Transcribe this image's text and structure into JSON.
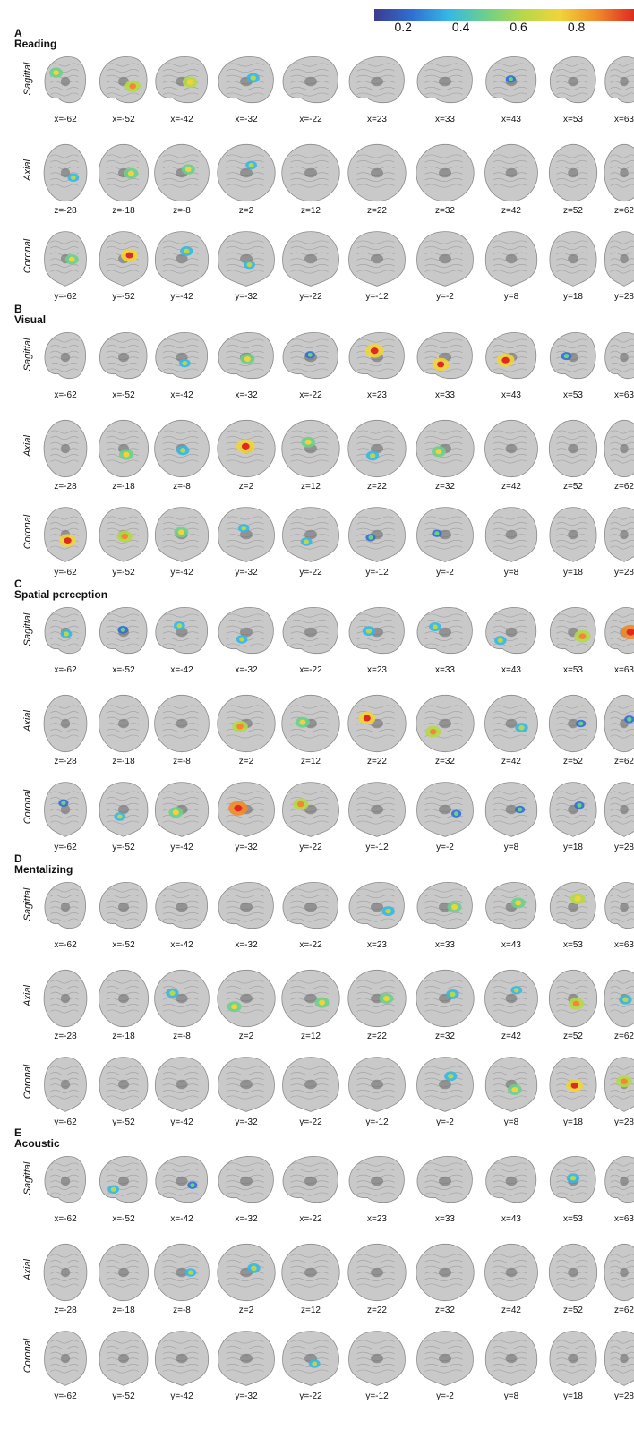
{
  "colorbar": {
    "ticks": [
      "0.2",
      "0.4",
      "0.6",
      "0.8"
    ],
    "tick_values": [
      0.2,
      0.4,
      0.6,
      0.8
    ],
    "range": [
      0.1,
      1.0
    ],
    "colors": [
      "#3b3b8f",
      "#2f6fd1",
      "#35b7e6",
      "#6cd08b",
      "#b6d84a",
      "#f1d43a",
      "#f08a2a",
      "#e02a1f"
    ]
  },
  "view_labels": {
    "sagittal": "Sagittal",
    "axial": "Axial",
    "coronal": "Coronal"
  },
  "coords": {
    "sagittal": [
      "x=-62",
      "x=-52",
      "x=-42",
      "x=-32",
      "x=-22",
      "x=23",
      "x=33",
      "x=43",
      "x=53",
      "x=63"
    ],
    "axial": [
      "z=-28",
      "z=-18",
      "z=-8",
      "z=2",
      "z=12",
      "z=22",
      "z=32",
      "z=42",
      "z=52",
      "z=62"
    ],
    "coronal": [
      "y=-62",
      "y=-52",
      "y=-42",
      "y=-32",
      "y=-22",
      "y=-12",
      "y=-2",
      "y=8",
      "y=18",
      "y=28"
    ]
  },
  "panels": [
    {
      "letter": "A",
      "title": "Reading",
      "activations": {
        "sagittal": [
          0.45,
          0.6,
          0.55,
          0.4,
          0,
          0,
          0,
          0.2,
          0,
          0
        ],
        "axial": [
          0.3,
          0.5,
          0.45,
          0.3,
          0,
          0,
          0,
          0,
          0,
          0
        ],
        "coronal": [
          0.45,
          0.7,
          0.4,
          0.3,
          0,
          0,
          0,
          0,
          0,
          0
        ]
      }
    },
    {
      "letter": "B",
      "title": "Visual",
      "activations": {
        "sagittal": [
          0,
          0,
          0.3,
          0.5,
          0.2,
          0.8,
          0.7,
          0.75,
          0.25,
          0
        ],
        "axial": [
          0,
          0.5,
          0.4,
          0.8,
          0.5,
          0.4,
          0.5,
          0,
          0,
          0
        ],
        "coronal": [
          0.7,
          0.6,
          0.5,
          0.3,
          0.3,
          0.2,
          0.2,
          0,
          0,
          0
        ]
      }
    },
    {
      "letter": "C",
      "title": "Spatial perception",
      "activations": {
        "sagittal": [
          0.3,
          0.25,
          0.3,
          0.3,
          0,
          0.4,
          0.35,
          0.35,
          0.65,
          0.85
        ],
        "axial": [
          0,
          0,
          0,
          0.6,
          0.5,
          0.7,
          0.6,
          0.4,
          0.2,
          0.2
        ],
        "coronal": [
          0.2,
          0.3,
          0.5,
          0.85,
          0.6,
          0,
          0.2,
          0.2,
          0.2,
          0
        ]
      }
    },
    {
      "letter": "D",
      "title": "Mentalizing",
      "activations": {
        "sagittal": [
          0,
          0,
          0,
          0,
          0,
          0.4,
          0.5,
          0.5,
          0.55,
          0
        ],
        "axial": [
          0,
          0,
          0.4,
          0.5,
          0.5,
          0.5,
          0.4,
          0.3,
          0.6,
          0.4
        ],
        "coronal": [
          0,
          0,
          0,
          0,
          0,
          0,
          0.4,
          0.5,
          0.7,
          0.6
        ]
      }
    },
    {
      "letter": "E",
      "title": "Acoustic",
      "activations": {
        "sagittal": [
          0,
          0.3,
          0.2,
          0,
          0,
          0,
          0,
          0,
          0.4,
          0
        ],
        "axial": [
          0,
          0,
          0.3,
          0.4,
          0,
          0,
          0,
          0,
          0,
          0
        ],
        "coronal": [
          0,
          0,
          0,
          0,
          0.3,
          0,
          0,
          0,
          0,
          0
        ]
      }
    }
  ]
}
